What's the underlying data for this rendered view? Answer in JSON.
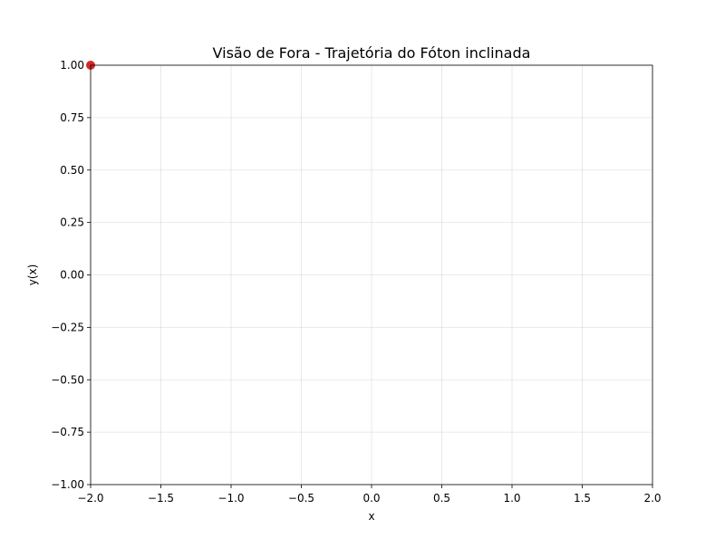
{
  "chart_data": {
    "type": "scatter",
    "title": "Visão de Fora - Trajetória do Fóton inclinada",
    "xlabel": "x",
    "ylabel": "y(x)",
    "xlim": [
      -2.0,
      2.0
    ],
    "ylim": [
      -1.0,
      1.0
    ],
    "grid": true,
    "x_ticks": [
      -2.0,
      -1.5,
      -1.0,
      -0.5,
      0.0,
      0.5,
      1.0,
      1.5,
      2.0
    ],
    "x_tick_labels": [
      "−2.0",
      "−1.5",
      "−1.0",
      "−0.5",
      "0.0",
      "0.5",
      "1.0",
      "1.5",
      "2.0"
    ],
    "y_ticks": [
      -1.0,
      -0.75,
      -0.5,
      -0.25,
      0.0,
      0.25,
      0.5,
      0.75,
      1.0
    ],
    "y_tick_labels": [
      "−1.00",
      "−0.75",
      "−0.50",
      "−0.25",
      "0.00",
      "0.25",
      "0.50",
      "0.75",
      "1.00"
    ],
    "series": [
      {
        "color": "#d62728",
        "points": [
          {
            "x": -2.0,
            "y": 1.0
          }
        ]
      }
    ]
  }
}
